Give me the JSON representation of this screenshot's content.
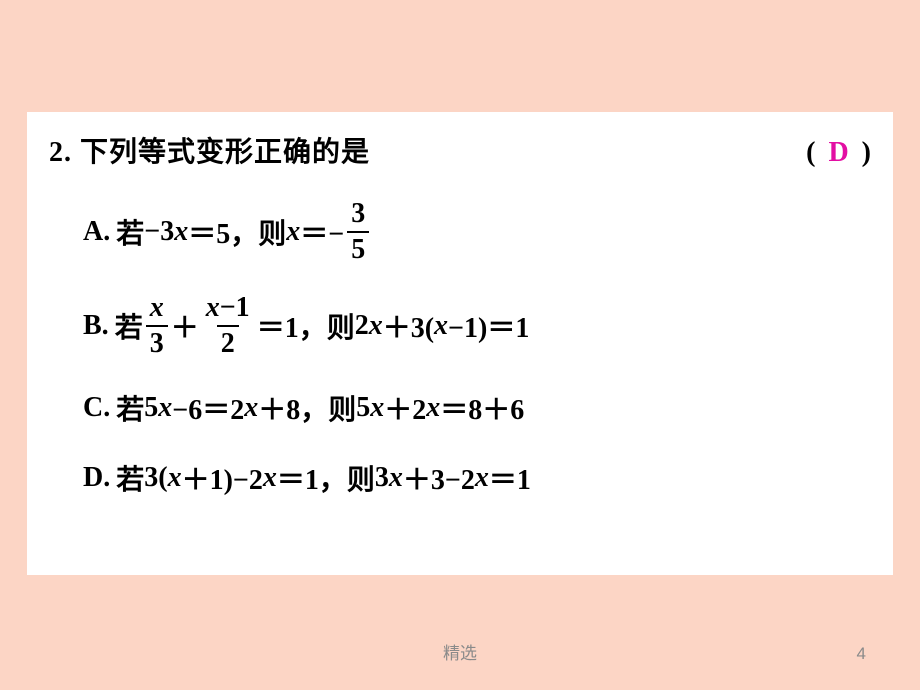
{
  "colors": {
    "page_background": "#fcd5c5",
    "panel_background": "#ffffff",
    "text": "#000000",
    "answer": "#e30ea3",
    "footer": "#8a8a8a"
  },
  "question": {
    "number": "2.",
    "stem": "下列等式变形正确的是",
    "paren_open": "(",
    "answer": "D",
    "paren_close": ")"
  },
  "options": {
    "A": {
      "label": "A.",
      "prefix": "若",
      "lhs_a": "−3",
      "lhs_var": "x",
      "lhs_eq": "＝5",
      "mid": "，则 ",
      "rhs_var": "x",
      "rhs_eq": "＝−",
      "frac_num": "3",
      "frac_den": "5"
    },
    "B": {
      "label": "B.",
      "prefix": "若",
      "f1_num_var": "x",
      "f1_den": "3",
      "plus": "＋",
      "f2_num_var": "x",
      "f2_num_rest": "−1",
      "f2_den": "2",
      "eq1": "＝1",
      "mid": "，则 ",
      "rhs_a": "2",
      "rhs_var1": "x",
      "rhs_b": "＋3(",
      "rhs_var2": "x",
      "rhs_c": "−1)＝1"
    },
    "C": {
      "label": "C.",
      "prefix": "若 ",
      "t1": "5",
      "v1": "x",
      "t2": "−6＝2",
      "v2": "x",
      "t3": "＋8",
      "mid": "，则 ",
      "t4": "5",
      "v3": "x",
      "t5": "＋2",
      "v4": "x",
      "t6": "＝8＋6"
    },
    "D": {
      "label": "D.",
      "prefix": "若 ",
      "t1": "3(",
      "v1": "x",
      "t2": "＋1)−2",
      "v2": "x",
      "t3": "＝1",
      "mid": "，则 ",
      "t4": "3",
      "v3": "x",
      "t5": "＋3−2",
      "v4": "x",
      "t6": "＝1"
    }
  },
  "footer": {
    "text": "精选",
    "page": "4"
  }
}
